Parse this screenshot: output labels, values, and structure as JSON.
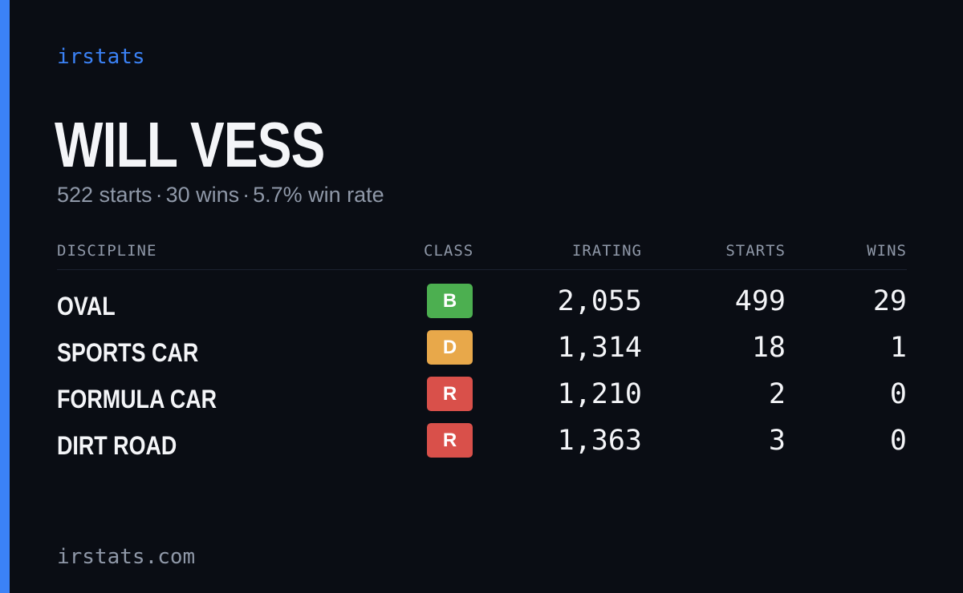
{
  "brand": {
    "label": "irstats",
    "color": "#3b82f6"
  },
  "driver": {
    "name": "WILL VESS",
    "starts_text": "522 starts",
    "wins_text": "30 wins",
    "winrate_text": "5.7% win rate",
    "separator": "·"
  },
  "table": {
    "headers": {
      "discipline": "DISCIPLINE",
      "class": "CLASS",
      "irating": "IRATING",
      "starts": "STARTS",
      "wins": "WINS"
    },
    "rows": [
      {
        "discipline": "OVAL",
        "class": "B",
        "class_color": "#4caf50",
        "irating": "2,055",
        "starts": "499",
        "wins": "29"
      },
      {
        "discipline": "SPORTS CAR",
        "class": "D",
        "class_color": "#e8a84a",
        "irating": "1,314",
        "starts": "18",
        "wins": "1"
      },
      {
        "discipline": "FORMULA CAR",
        "class": "R",
        "class_color": "#d9504a",
        "irating": "1,210",
        "starts": "2",
        "wins": "0"
      },
      {
        "discipline": "DIRT ROAD",
        "class": "R",
        "class_color": "#d9504a",
        "irating": "1,363",
        "starts": "3",
        "wins": "0"
      }
    ]
  },
  "footer": {
    "url": "irstats.com"
  },
  "colors": {
    "background": "#0a0d14",
    "accent": "#3b82f6",
    "text_primary": "#f4f5f8",
    "text_muted": "#8f98a8"
  }
}
